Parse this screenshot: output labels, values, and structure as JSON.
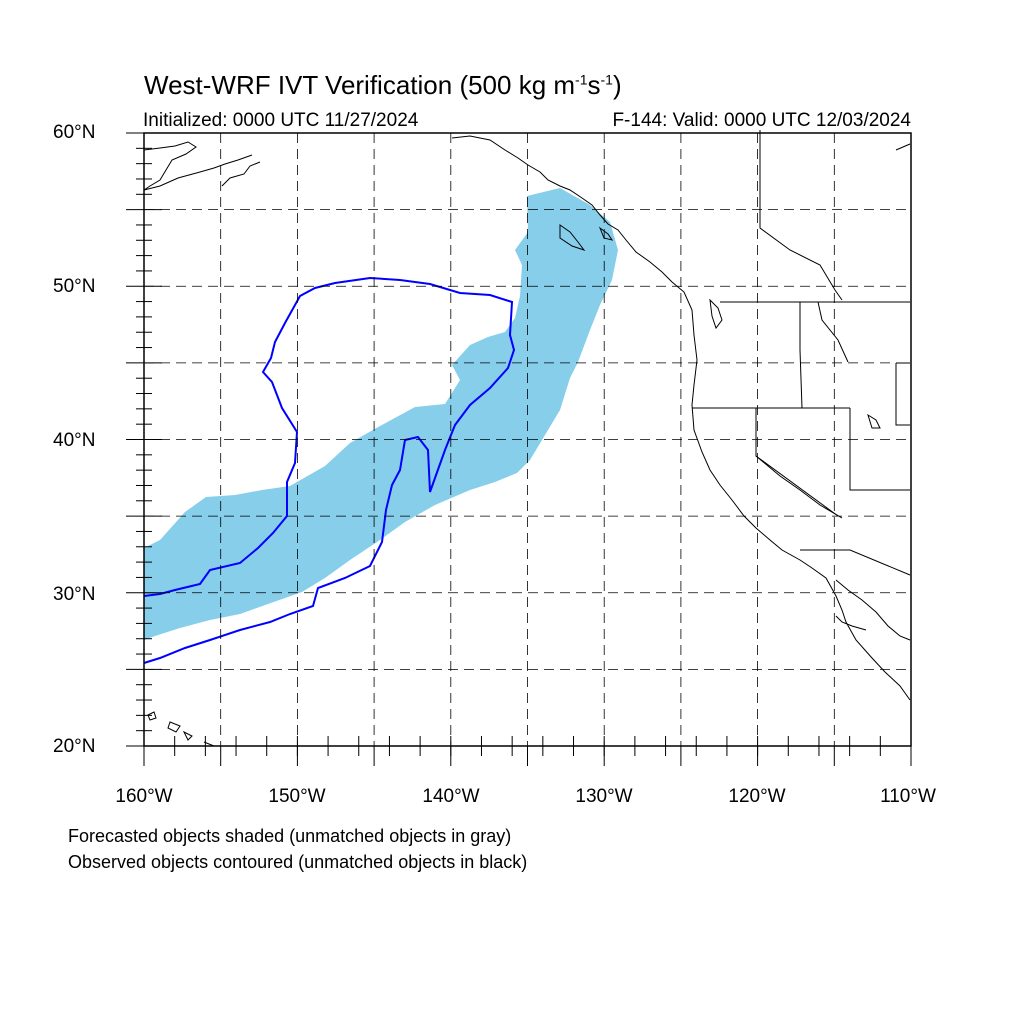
{
  "title": {
    "prefix": "West-WRF IVT Verification (500 kg m",
    "exp1": "-1",
    "mid": "s",
    "exp2": "-1",
    "suffix": ")"
  },
  "initialized": "Initialized: 0000 UTC 11/27/2024",
  "valid": "F-144: Valid: 0000 UTC 12/03/2024",
  "footer": {
    "line1": "Forecasted objects shaded (unmatched objects in gray)",
    "line2": "Observed objects contoured (unmatched objects in black)"
  },
  "lat_labels": [
    "60°N",
    "50°N",
    "40°N",
    "30°N",
    "20°N"
  ],
  "lon_labels": [
    "160°W",
    "150°W",
    "140°W",
    "130°W",
    "120°W",
    "110°W"
  ],
  "map_extent": {
    "lon": [
      -160,
      -110
    ],
    "lat": [
      20,
      60
    ]
  },
  "colors": {
    "forecast_fill": "#87ceeb",
    "observed_contour": "#0000ff",
    "coastline": "#000000",
    "grid": "#000000"
  }
}
